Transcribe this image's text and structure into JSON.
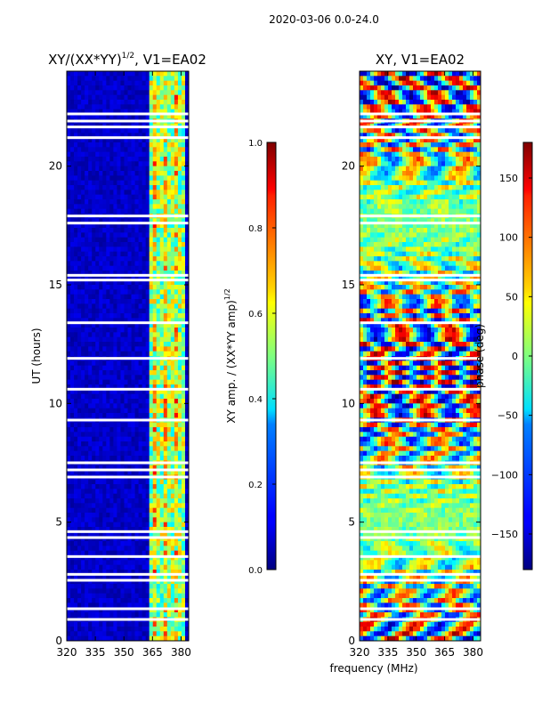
{
  "suptitle": "2020-03-06 0.0-24.0",
  "xlabel_shared": "frequency (MHz)",
  "chart_data": [
    {
      "type": "heatmap",
      "title_main": "XY/(XX*YY)",
      "title_sup": "1/2",
      "title_tail": ", V1=EA02",
      "ylabel": "UT (hours)",
      "xlim": [
        320,
        384
      ],
      "ylim": [
        0,
        24
      ],
      "xticks": [
        "320",
        "335",
        "350",
        "365",
        "380"
      ],
      "xtick_values": [
        320,
        335,
        350,
        365,
        380
      ],
      "yticks": [
        "0",
        "5",
        "10",
        "15",
        "20"
      ],
      "ytick_values": [
        0,
        5,
        10,
        15,
        20
      ],
      "colorbar": {
        "label_main": "XY amp. / (XX*YY amp)",
        "label_sup": "1/2",
        "vmin": 0.0,
        "vmax": 1.0,
        "ticks": [
          "0.0",
          "0.2",
          "0.4",
          "0.6",
          "0.8",
          "1.0"
        ],
        "tick_values": [
          0.0,
          0.2,
          0.4,
          0.6,
          0.8,
          1.0
        ],
        "colormap": "jet"
      },
      "blank_hours": [
        0.9,
        1.35,
        2.55,
        2.8,
        3.55,
        4.35,
        4.6,
        6.9,
        7.2,
        7.5,
        9.3,
        10.6,
        11.9,
        13.4,
        15.2,
        15.4,
        17.6,
        17.9,
        21.2,
        21.65,
        21.9,
        22.2
      ],
      "active_band_mhz": [
        363,
        382
      ]
    },
    {
      "type": "heatmap",
      "title_main": "XY, V1=EA02",
      "ylabel": "",
      "xlim": [
        320,
        384
      ],
      "ylim": [
        0,
        24
      ],
      "xticks": [
        "320",
        "335",
        "350",
        "365",
        "380"
      ],
      "xtick_values": [
        320,
        335,
        350,
        365,
        380
      ],
      "yticks": [
        "0",
        "5",
        "10",
        "15",
        "20"
      ],
      "ytick_values": [
        0,
        5,
        10,
        15,
        20
      ],
      "colorbar": {
        "label_main": "phase (deg)",
        "vmin": -180,
        "vmax": 180,
        "ticks": [
          "−150",
          "−100",
          "−50",
          "0",
          "50",
          "100",
          "150"
        ],
        "tick_values": [
          -150,
          -100,
          -50,
          0,
          50,
          100,
          150
        ],
        "colormap": "jet"
      },
      "blank_hours": [
        0.9,
        1.35,
        2.55,
        2.8,
        3.55,
        4.35,
        4.6,
        6.9,
        7.2,
        7.5,
        9.3,
        10.6,
        11.9,
        13.4,
        15.2,
        15.4,
        17.6,
        17.9,
        21.2,
        21.65,
        21.9,
        22.2
      ]
    }
  ]
}
